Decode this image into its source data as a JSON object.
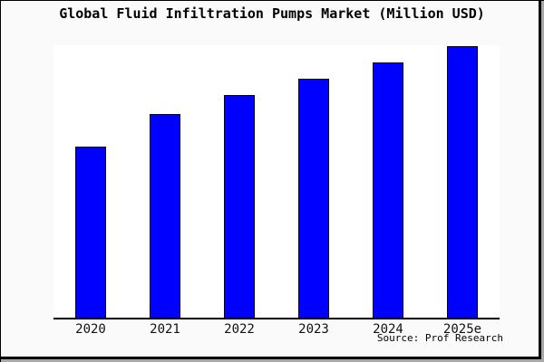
{
  "page": {
    "background": "#fafafa",
    "frame_border_color": "#000000",
    "frame_shadow_color": "#a8a8a8"
  },
  "chart_data": {
    "type": "bar",
    "title": "Global Fluid Infiltration Pumps Market (Million USD)",
    "categories": [
      "2020",
      "2021",
      "2022",
      "2023",
      "2024",
      "2025e"
    ],
    "values": [
      63,
      75,
      82,
      88,
      94,
      100
    ],
    "xlabel": "",
    "ylabel": "",
    "ylim": [
      0,
      100.3
    ],
    "y_axis_visible": false,
    "grid": false,
    "legend": false,
    "bar_color": "#0000ff",
    "bar_border_color": "#000000",
    "plot_background": "#ffffff",
    "axis_line_color": "#000000",
    "note": "No y-axis scale or value labels are shown in the image; values are relative bar heights normalized so 2025e = 100."
  },
  "footer": {
    "source": "Source: Prof Research"
  }
}
